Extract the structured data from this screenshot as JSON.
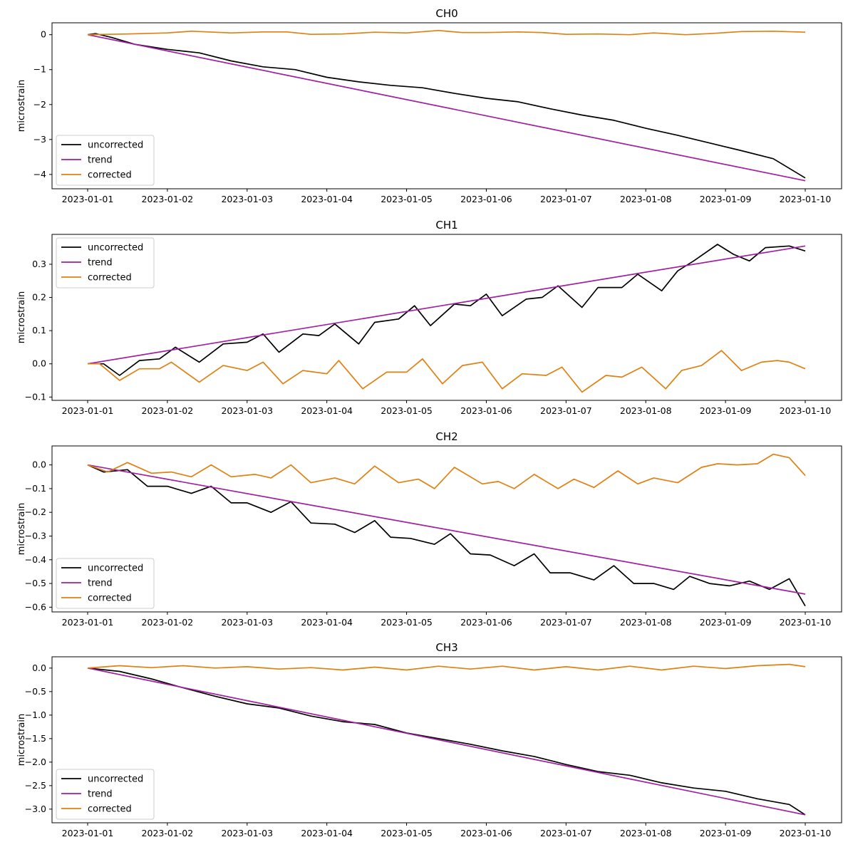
{
  "chart_data": [
    {
      "type": "line",
      "title": "CH0",
      "xlabel": "",
      "ylabel": "microstrain",
      "x_ticks": [
        "2023-01-01",
        "2023-01-02",
        "2023-01-03",
        "2023-01-04",
        "2023-01-05",
        "2023-01-06",
        "2023-01-07",
        "2023-01-08",
        "2023-01-09",
        "2023-01-10"
      ],
      "x_range": [
        "2023-01-01",
        "2023-01-10"
      ],
      "xlim": [
        "2022-12-31T10:00",
        "2023-01-10T11:00"
      ],
      "ylim": [
        -4.41,
        0.34
      ],
      "y_ticks": [
        0,
        -1,
        -2,
        -3,
        -4
      ],
      "y_tick_labels": [
        "0",
        "−1",
        "−2",
        "−3",
        "−4"
      ],
      "grid": false,
      "legend_position": "lower-left",
      "series": [
        {
          "name": "uncorrected",
          "color": "#000000",
          "x": [
            0,
            0.1,
            0.3,
            0.6,
            1.0,
            1.4,
            1.8,
            2.2,
            2.6,
            3.0,
            3.4,
            3.8,
            4.2,
            4.6,
            5.0,
            5.4,
            5.8,
            6.2,
            6.6,
            7.0,
            7.4,
            7.8,
            8.2,
            8.6,
            9.0
          ],
          "values": [
            0,
            0.03,
            -0.08,
            -0.28,
            -0.42,
            -0.52,
            -0.75,
            -0.92,
            -1.0,
            -1.22,
            -1.35,
            -1.45,
            -1.52,
            -1.68,
            -1.82,
            -1.92,
            -2.12,
            -2.3,
            -2.45,
            -2.68,
            -2.88,
            -3.1,
            -3.32,
            -3.55,
            -4.1
          ]
        },
        {
          "name": "trend",
          "color": "#a020a0",
          "x": [
            0,
            9.0
          ],
          "values": [
            0,
            -4.18
          ]
        },
        {
          "name": "corrected",
          "color": "#e08010",
          "x": [
            0,
            0.5,
            1.0,
            1.3,
            1.8,
            2.2,
            2.5,
            2.8,
            3.2,
            3.6,
            4.0,
            4.4,
            4.7,
            5.0,
            5.4,
            5.7,
            6.0,
            6.4,
            6.8,
            7.1,
            7.5,
            7.8,
            8.2,
            8.6,
            9.0
          ],
          "values": [
            0,
            0.02,
            0.05,
            0.1,
            0.05,
            0.08,
            0.08,
            0.01,
            0.02,
            0.07,
            0.05,
            0.12,
            0.06,
            0.06,
            0.08,
            0.06,
            0.01,
            0.02,
            0.0,
            0.05,
            0.0,
            0.03,
            0.09,
            0.1,
            0.07
          ]
        }
      ]
    },
    {
      "type": "line",
      "title": "CH1",
      "xlabel": "",
      "ylabel": "microstrain",
      "x_ticks": [
        "2023-01-01",
        "2023-01-02",
        "2023-01-03",
        "2023-01-04",
        "2023-01-05",
        "2023-01-06",
        "2023-01-07",
        "2023-01-08",
        "2023-01-09",
        "2023-01-10"
      ],
      "x_range": [
        "2023-01-01",
        "2023-01-10"
      ],
      "xlim": [
        "2022-12-31T10:00",
        "2023-01-10T11:00"
      ],
      "ylim": [
        -0.11,
        0.39
      ],
      "y_ticks": [
        -0.1,
        0.0,
        0.1,
        0.2,
        0.3
      ],
      "y_tick_labels": [
        "−0.1",
        "0.0",
        "0.1",
        "0.2",
        "0.3"
      ],
      "grid": false,
      "legend_position": "upper-left",
      "series": [
        {
          "name": "uncorrected",
          "color": "#000000",
          "x": [
            0,
            0.2,
            0.4,
            0.65,
            0.9,
            1.1,
            1.4,
            1.7,
            2.0,
            2.2,
            2.4,
            2.7,
            2.9,
            3.1,
            3.4,
            3.6,
            3.9,
            4.1,
            4.3,
            4.6,
            4.8,
            5.0,
            5.2,
            5.5,
            5.7,
            5.9,
            6.2,
            6.4,
            6.7,
            6.9,
            7.2,
            7.4,
            7.6,
            7.9,
            8.1,
            8.3,
            8.5,
            8.8,
            9.0
          ],
          "values": [
            0,
            0.0,
            -0.035,
            0.01,
            0.015,
            0.05,
            0.005,
            0.06,
            0.065,
            0.09,
            0.035,
            0.09,
            0.085,
            0.12,
            0.06,
            0.125,
            0.135,
            0.175,
            0.115,
            0.18,
            0.175,
            0.21,
            0.145,
            0.195,
            0.2,
            0.235,
            0.17,
            0.23,
            0.23,
            0.27,
            0.22,
            0.28,
            0.31,
            0.36,
            0.33,
            0.31,
            0.35,
            0.355,
            0.34
          ]
        },
        {
          "name": "trend",
          "color": "#a020a0",
          "x": [
            0,
            9.0
          ],
          "values": [
            0,
            0.355
          ]
        },
        {
          "name": "corrected",
          "color": "#e08010",
          "x": [
            0,
            0.15,
            0.4,
            0.65,
            0.9,
            1.05,
            1.4,
            1.7,
            2.0,
            2.2,
            2.45,
            2.7,
            3.0,
            3.15,
            3.45,
            3.75,
            4.0,
            4.2,
            4.45,
            4.7,
            4.95,
            5.2,
            5.45,
            5.75,
            5.95,
            6.2,
            6.5,
            6.7,
            6.95,
            7.25,
            7.45,
            7.7,
            7.95,
            8.2,
            8.45,
            8.65,
            8.8,
            9.0
          ],
          "values": [
            0,
            0.0,
            -0.05,
            -0.015,
            -0.015,
            0.005,
            -0.055,
            -0.005,
            -0.02,
            0.005,
            -0.06,
            -0.02,
            -0.03,
            0.01,
            -0.075,
            -0.025,
            -0.025,
            0.015,
            -0.06,
            -0.005,
            0.005,
            -0.075,
            -0.03,
            -0.035,
            -0.01,
            -0.085,
            -0.035,
            -0.04,
            -0.01,
            -0.075,
            -0.02,
            -0.005,
            0.04,
            -0.02,
            0.005,
            0.01,
            0.005,
            -0.015
          ]
        }
      ]
    },
    {
      "type": "line",
      "title": "CH2",
      "xlabel": "",
      "ylabel": "microstrain",
      "x_ticks": [
        "2023-01-01",
        "2023-01-02",
        "2023-01-03",
        "2023-01-04",
        "2023-01-05",
        "2023-01-06",
        "2023-01-07",
        "2023-01-08",
        "2023-01-09",
        "2023-01-10"
      ],
      "x_range": [
        "2023-01-01",
        "2023-01-10"
      ],
      "xlim": [
        "2022-12-31T10:00",
        "2023-01-10T11:00"
      ],
      "ylim": [
        -0.62,
        0.08
      ],
      "y_ticks": [
        0.0,
        -0.1,
        -0.2,
        -0.3,
        -0.4,
        -0.5,
        -0.6
      ],
      "y_tick_labels": [
        "0.0",
        "−0.1",
        "−0.2",
        "−0.3",
        "−0.4",
        "−0.5",
        "−0.6"
      ],
      "grid": false,
      "legend_position": "lower-left",
      "series": [
        {
          "name": "uncorrected",
          "color": "#000000",
          "x": [
            0,
            0.2,
            0.5,
            0.75,
            1.0,
            1.3,
            1.55,
            1.8,
            2.0,
            2.3,
            2.55,
            2.8,
            3.1,
            3.35,
            3.6,
            3.8,
            4.05,
            4.35,
            4.55,
            4.8,
            5.05,
            5.35,
            5.6,
            5.8,
            6.05,
            6.35,
            6.6,
            6.85,
            7.1,
            7.35,
            7.55,
            7.8,
            8.05,
            8.3,
            8.55,
            8.8,
            9.0
          ],
          "values": [
            0,
            -0.03,
            -0.02,
            -0.09,
            -0.09,
            -0.12,
            -0.09,
            -0.16,
            -0.16,
            -0.2,
            -0.155,
            -0.245,
            -0.25,
            -0.285,
            -0.235,
            -0.305,
            -0.31,
            -0.335,
            -0.29,
            -0.375,
            -0.38,
            -0.425,
            -0.375,
            -0.455,
            -0.455,
            -0.485,
            -0.425,
            -0.5,
            -0.5,
            -0.525,
            -0.47,
            -0.5,
            -0.51,
            -0.49,
            -0.525,
            -0.48,
            -0.595
          ]
        },
        {
          "name": "trend",
          "color": "#a020a0",
          "x": [
            0,
            9.0
          ],
          "values": [
            0,
            -0.545
          ]
        },
        {
          "name": "corrected",
          "color": "#e08010",
          "x": [
            0,
            0.25,
            0.5,
            0.8,
            1.05,
            1.3,
            1.55,
            1.8,
            2.1,
            2.3,
            2.55,
            2.8,
            3.1,
            3.35,
            3.6,
            3.9,
            4.15,
            4.35,
            4.6,
            4.95,
            5.15,
            5.35,
            5.6,
            5.9,
            6.1,
            6.35,
            6.65,
            6.9,
            7.1,
            7.4,
            7.7,
            7.9,
            8.15,
            8.4,
            8.6,
            8.8,
            9.0
          ],
          "values": [
            0,
            -0.03,
            0.01,
            -0.035,
            -0.03,
            -0.05,
            0.0,
            -0.05,
            -0.04,
            -0.055,
            0.0,
            -0.075,
            -0.055,
            -0.08,
            -0.005,
            -0.075,
            -0.06,
            -0.1,
            -0.01,
            -0.08,
            -0.07,
            -0.1,
            -0.04,
            -0.1,
            -0.06,
            -0.095,
            -0.025,
            -0.08,
            -0.055,
            -0.075,
            -0.01,
            0.005,
            0.0,
            0.005,
            0.045,
            0.03,
            -0.045
          ]
        }
      ]
    },
    {
      "type": "line",
      "title": "CH3",
      "xlabel": "",
      "ylabel": "microstrain",
      "x_ticks": [
        "2023-01-01",
        "2023-01-02",
        "2023-01-03",
        "2023-01-04",
        "2023-01-05",
        "2023-01-06",
        "2023-01-07",
        "2023-01-08",
        "2023-01-09",
        "2023-01-10"
      ],
      "x_range": [
        "2023-01-01",
        "2023-01-10"
      ],
      "xlim": [
        "2022-12-31T10:00",
        "2023-01-10T11:00"
      ],
      "ylim": [
        -3.29,
        0.24
      ],
      "y_ticks": [
        0.0,
        -0.5,
        -1.0,
        -1.5,
        -2.0,
        -2.5,
        -3.0
      ],
      "y_tick_labels": [
        "0.0",
        "−0.5",
        "−1.0",
        "−1.5",
        "−2.0",
        "−2.5",
        "−3.0"
      ],
      "grid": false,
      "legend_position": "lower-left",
      "series": [
        {
          "name": "uncorrected",
          "color": "#000000",
          "x": [
            0,
            0.4,
            0.8,
            1.2,
            1.6,
            2.0,
            2.4,
            2.8,
            3.2,
            3.6,
            4.0,
            4.4,
            4.8,
            5.2,
            5.6,
            6.0,
            6.4,
            6.8,
            7.2,
            7.6,
            8.0,
            8.4,
            8.8,
            9.0
          ],
          "values": [
            0,
            -0.07,
            -0.23,
            -0.42,
            -0.6,
            -0.76,
            -0.85,
            -1.02,
            -1.14,
            -1.2,
            -1.38,
            -1.5,
            -1.62,
            -1.76,
            -1.88,
            -2.05,
            -2.2,
            -2.28,
            -2.44,
            -2.55,
            -2.62,
            -2.78,
            -2.9,
            -3.12
          ]
        },
        {
          "name": "trend",
          "color": "#a020a0",
          "x": [
            0,
            9.0
          ],
          "values": [
            0,
            -3.12
          ]
        },
        {
          "name": "corrected",
          "color": "#e08010",
          "x": [
            0,
            0.4,
            0.8,
            1.2,
            1.6,
            2.0,
            2.4,
            2.8,
            3.2,
            3.6,
            4.0,
            4.4,
            4.8,
            5.2,
            5.6,
            6.0,
            6.4,
            6.8,
            7.2,
            7.6,
            8.0,
            8.4,
            8.8,
            9.0
          ],
          "values": [
            0,
            0.05,
            0.01,
            0.05,
            0.0,
            0.03,
            -0.02,
            0.01,
            -0.04,
            0.02,
            -0.04,
            0.04,
            -0.02,
            0.04,
            -0.04,
            0.03,
            -0.04,
            0.04,
            -0.04,
            0.04,
            -0.01,
            0.05,
            0.08,
            0.03
          ]
        }
      ]
    }
  ]
}
